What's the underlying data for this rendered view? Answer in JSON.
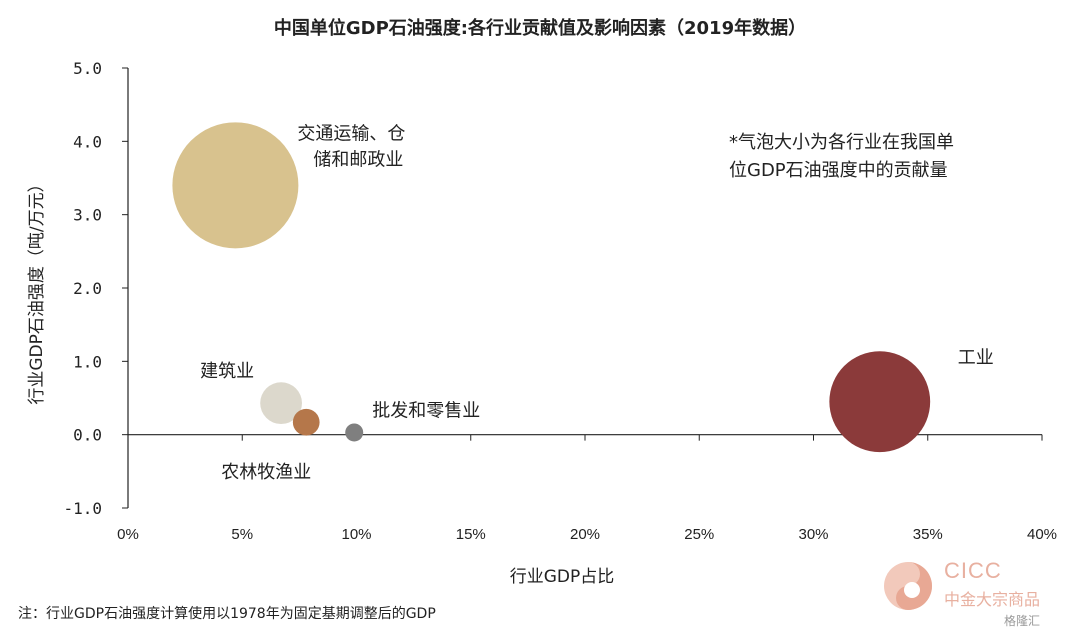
{
  "chart_data": {
    "type": "scatter",
    "title": "中国单位GDP石油强度:各行业贡献值及影响因素（2019年数据）",
    "xlabel": "行业GDP占比",
    "ylabel": "行业GDP石油强度（吨/万元）",
    "xlim": [
      0,
      40
    ],
    "ylim": [
      -1.0,
      5.0
    ],
    "x_ticks": [
      "0%",
      "5%",
      "10%",
      "15%",
      "20%",
      "25%",
      "30%",
      "35%",
      "40%"
    ],
    "y_ticks": [
      "5.0",
      "4.0",
      "3.0",
      "2.0",
      "1.0",
      "0.0",
      "-1.0"
    ],
    "x_tick_values": [
      0,
      5,
      10,
      15,
      20,
      25,
      30,
      35,
      40
    ],
    "y_tick_values": [
      5,
      4,
      3,
      2,
      1,
      0,
      -1
    ],
    "bubbles": [
      {
        "name": "交通运输、仓储和邮政业",
        "label_lines": [
          "交通运输、仓",
          "储和邮政业"
        ],
        "x": 4.7,
        "y": 3.4,
        "size": 100,
        "color": "#d8c28e"
      },
      {
        "name": "工业",
        "label_lines": [
          "工业"
        ],
        "x": 32.9,
        "y": 0.45,
        "size": 64,
        "color": "#8b3a3a"
      },
      {
        "name": "建筑业",
        "label_lines": [
          "建筑业"
        ],
        "x": 6.7,
        "y": 0.43,
        "size": 11,
        "color": "#dcd8cc"
      },
      {
        "name": "农林牧渔业",
        "label_lines": [
          "农林牧渔业"
        ],
        "x": 7.8,
        "y": 0.17,
        "size": 4.5,
        "color": "#b5774a"
      },
      {
        "name": "批发和零售业",
        "label_lines": [
          "批发和零售业"
        ],
        "x": 9.9,
        "y": 0.03,
        "size": 1.5,
        "color": "#7f7f7f"
      }
    ],
    "annotation_lines": [
      "*气泡大小为各行业在我国单",
      "位GDP石油强度中的贡献量"
    ],
    "grid": false,
    "legend": "none"
  },
  "footnote": "注：行业GDP石油强度计算使用以1978年为固定基期调整后的GDP",
  "logo": {
    "en": "CICC",
    "cn": "中金大宗商品"
  },
  "watermark": "格隆汇"
}
